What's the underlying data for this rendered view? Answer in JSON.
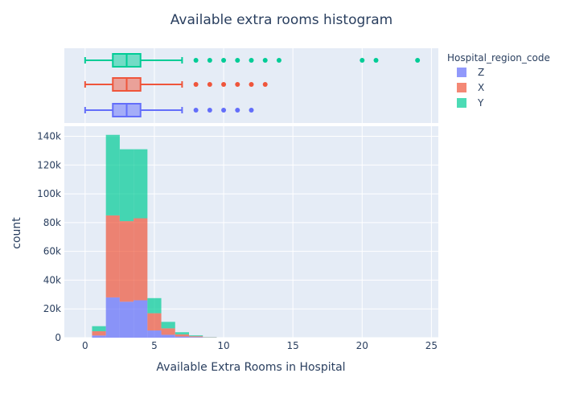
{
  "chart_data": {
    "type": "histogram",
    "title": "Available extra rooms histogram",
    "xlabel": "Available Extra Rooms in Hospital",
    "ylabel": "count",
    "xlim": [
      -1.5,
      25.5
    ],
    "ylim": [
      0,
      147000
    ],
    "x_ticks": [
      0,
      5,
      10,
      15,
      20,
      25
    ],
    "y_ticks": [
      0,
      20000,
      40000,
      60000,
      80000,
      100000,
      120000,
      140000
    ],
    "y_tick_labels": [
      "0",
      "20k",
      "40k",
      "60k",
      "80k",
      "100k",
      "120k",
      "140k"
    ],
    "barmode": "stack",
    "bin_edges": [
      0.5,
      1.5,
      2.5,
      3.5,
      4.5,
      5.5,
      6.5,
      7.5,
      8.5,
      9.5
    ],
    "legend": {
      "title": "Hospital_region_code",
      "placement": "right"
    },
    "series": [
      {
        "name": "Z",
        "color": "#636efa",
        "values": [
          1500,
          28000,
          25000,
          26000,
          5000,
          2000,
          800,
          400,
          100
        ]
      },
      {
        "name": "X",
        "color": "#ef553b",
        "values": [
          3000,
          57000,
          56000,
          57000,
          12000,
          4500,
          1500,
          600,
          150
        ]
      },
      {
        "name": "Y",
        "color": "#00cc96",
        "values": [
          3500,
          56000,
          50000,
          48000,
          10500,
          4500,
          1500,
          600,
          150
        ]
      }
    ],
    "box_plots": [
      {
        "name": "Y",
        "color": "#00cc96",
        "lower_fence": 0,
        "q1": 2,
        "median": 3,
        "q3": 4,
        "upper_fence": 7,
        "outliers": [
          8,
          9,
          10,
          11,
          12,
          13,
          14,
          20,
          21,
          24
        ]
      },
      {
        "name": "X",
        "color": "#ef553b",
        "lower_fence": 0,
        "q1": 2,
        "median": 3,
        "q3": 4,
        "upper_fence": 7,
        "outliers": [
          8,
          9,
          10,
          11,
          12,
          13
        ]
      },
      {
        "name": "Z",
        "color": "#636efa",
        "lower_fence": 0,
        "q1": 2,
        "median": 3,
        "q3": 4,
        "upper_fence": 7,
        "outliers": [
          8,
          9,
          10,
          11,
          12
        ]
      }
    ]
  }
}
